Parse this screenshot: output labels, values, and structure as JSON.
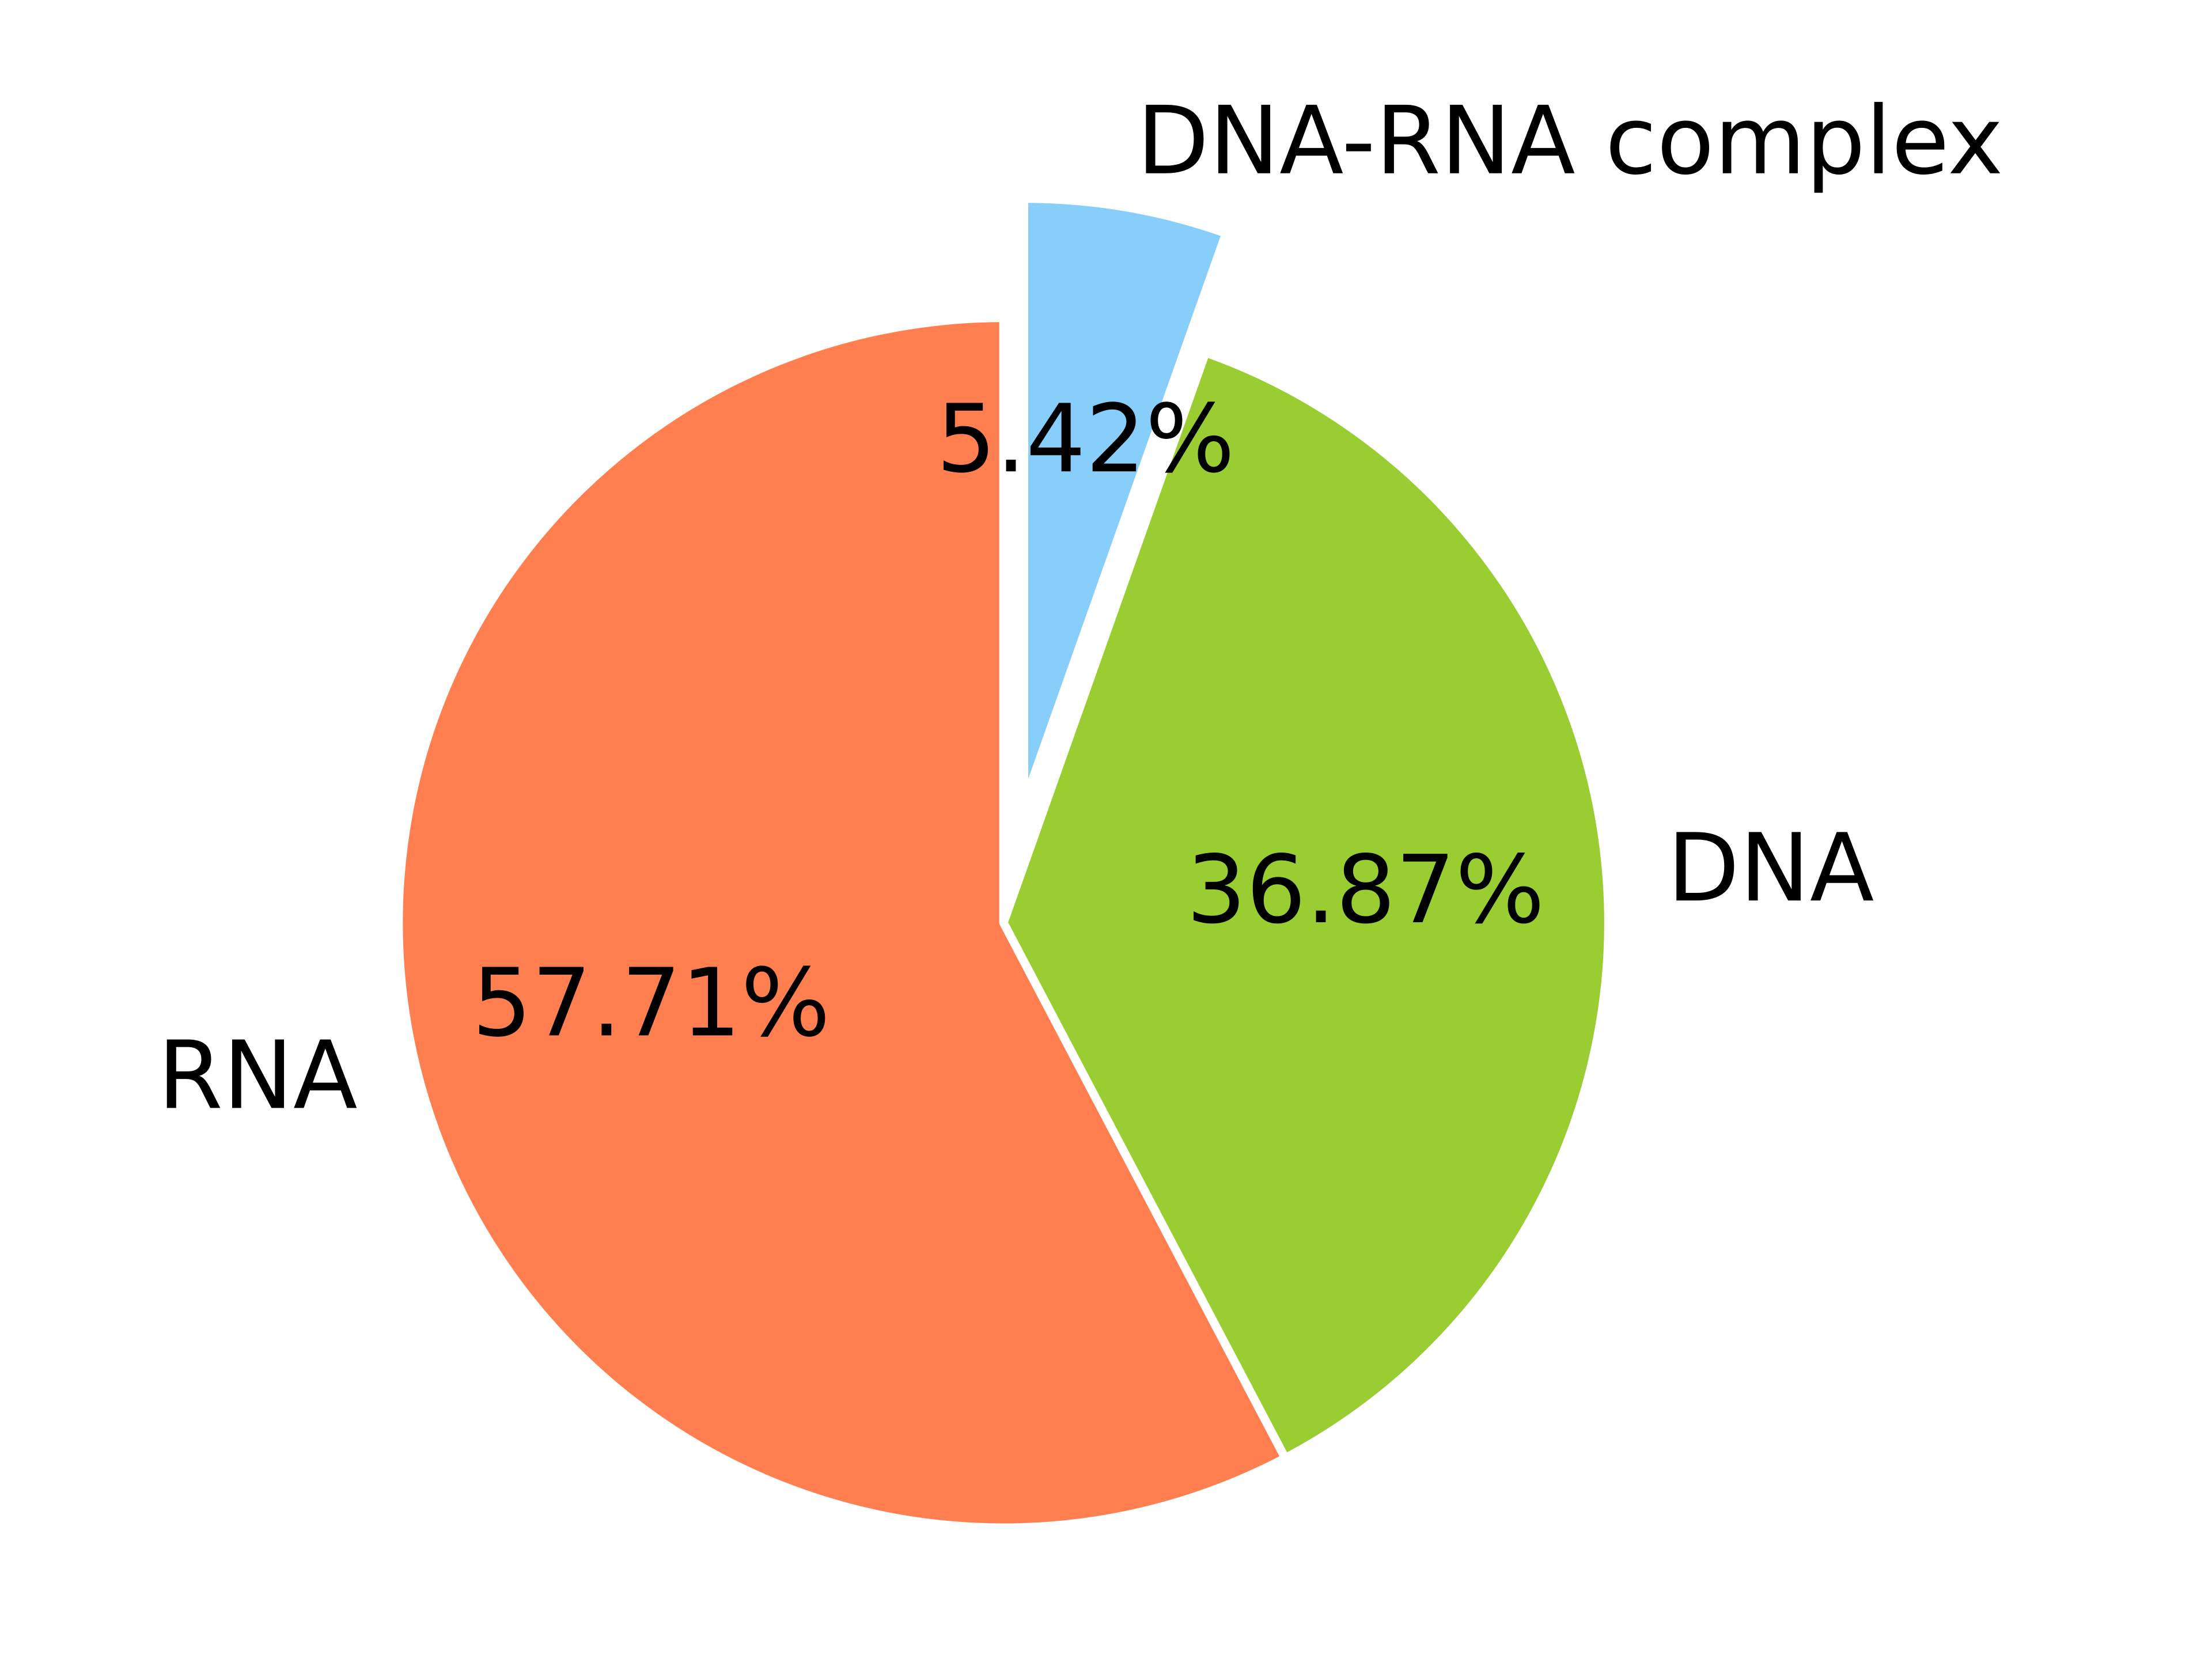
{
  "chart_data": {
    "type": "pie",
    "categories": [
      "RNA",
      "DNA",
      "DNA-RNA complex"
    ],
    "values": [
      57.71,
      36.87,
      5.42
    ],
    "value_labels": [
      "57.71%",
      "36.87%",
      "5.42%"
    ],
    "colors": [
      "#ff7f50",
      "#9acd32",
      "#87cefa"
    ],
    "explode": [
      0,
      0,
      0.2
    ],
    "startangle": 90
  }
}
